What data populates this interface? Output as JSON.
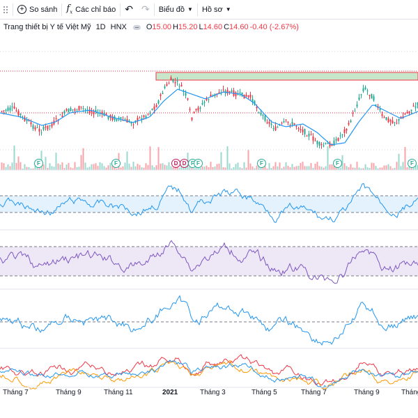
{
  "toolbar": {
    "compare_label": "So sánh",
    "indicators_label": "Các chỉ báo",
    "chart_type_label": "Biểu đồ",
    "profile_label": "Hồ sơ"
  },
  "legend": {
    "name": "Trang thiết bị Y tế Việt Mỹ",
    "interval": "1D",
    "exchange": "HNX",
    "open_label": "O",
    "open": "15.00",
    "high_label": "H",
    "high": "15.20",
    "low_label": "L",
    "low": "14.60",
    "close_label": "C",
    "close": "14.60",
    "change": "-0.40 (-2.67%)"
  },
  "time_axis": [
    "Tháng 7",
    "Tháng 9",
    "Tháng 11",
    "2021",
    "Tháng 3",
    "Tháng 5",
    "Tháng 7",
    "Tháng 9",
    "Tháng"
  ],
  "events": {
    "f_badge": "F",
    "d_badge": "D"
  },
  "colors": {
    "up": "#22ab94",
    "down": "#f23645",
    "ma": "#2196f3",
    "rsi": "#2196f3",
    "rsi_band": "#e3f2fd",
    "stoch": "#7e57c2",
    "stoch_band": "#ede7f6",
    "osc": "#2196f3",
    "line_red": "#f23645",
    "line_orange": "#ff9800",
    "line_blue": "#2196f3",
    "resistance_fill": "#c8e6c9",
    "resistance_border": "#f23645"
  },
  "icons": [
    "grip-icon",
    "plus-circle-icon",
    "fx-icon",
    "undo-icon",
    "redo-icon",
    "chevron-down-icon",
    "eye-icon"
  ]
}
